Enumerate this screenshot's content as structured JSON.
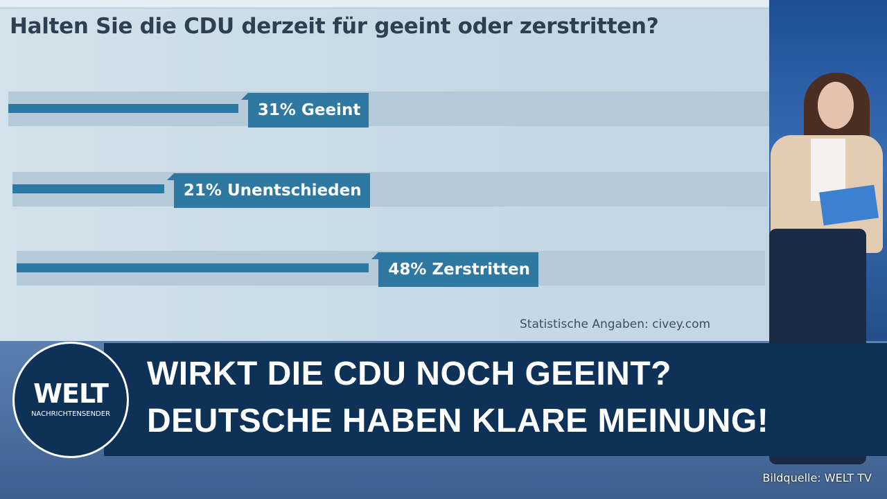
{
  "chart_data": {
    "type": "bar",
    "orientation": "horizontal",
    "title": "Halten Sie die CDU derzeit für geeint oder zerstritten?",
    "categories": [
      "Geeint",
      "Unentschieden",
      "Zerstritten"
    ],
    "values": [
      31,
      21,
      48
    ],
    "labels": [
      "31% Geeint",
      "21% Unentschieden",
      "48% Zerstritten"
    ],
    "unit": "%",
    "xlim": [
      0,
      100
    ],
    "grid": false,
    "source": "Statistische Angaben: civey.com",
    "colors": {
      "bar": "#2c79a4",
      "track": "#b4cad8"
    }
  },
  "lower_third": {
    "headline1": "WIRKT DIE CDU NOCH GEEINT?",
    "headline2": "DEUTSCHE HABEN KLARE MEINUNG!"
  },
  "logo": {
    "word": "WELT",
    "sub": "NACHRICHTENSENDER"
  },
  "credit": "Bildquelle: WELT TV"
}
